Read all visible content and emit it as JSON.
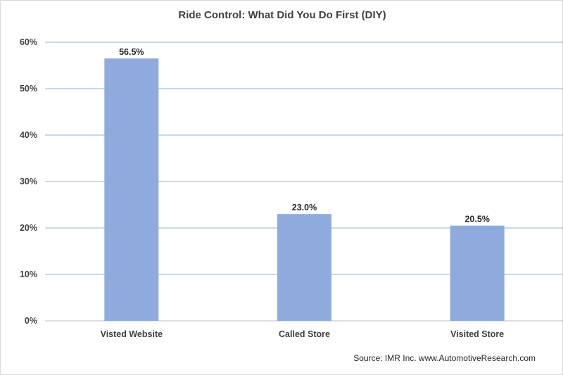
{
  "chart_data": {
    "type": "bar",
    "title": "Ride Control: What Did You Do First (DIY)",
    "xlabel": "",
    "ylabel": "",
    "categories": [
      "Visted Website",
      "Called Store",
      "Visited Store"
    ],
    "values": [
      56.5,
      23.0,
      20.5
    ],
    "data_labels": [
      "56.5%",
      "23.0%",
      "20.5%"
    ],
    "y_ticks": [
      0,
      10,
      20,
      30,
      40,
      50,
      60
    ],
    "y_tick_labels": [
      "0%",
      "10%",
      "20%",
      "30%",
      "40%",
      "50%",
      "60%"
    ],
    "ylim": [
      0,
      60
    ],
    "grid": true,
    "legend": "none",
    "colors": {
      "bar": "#8faadc",
      "grid": "#8fb4c9"
    }
  },
  "source": "Source: IMR Inc. www.AutomotiveResearch.com"
}
